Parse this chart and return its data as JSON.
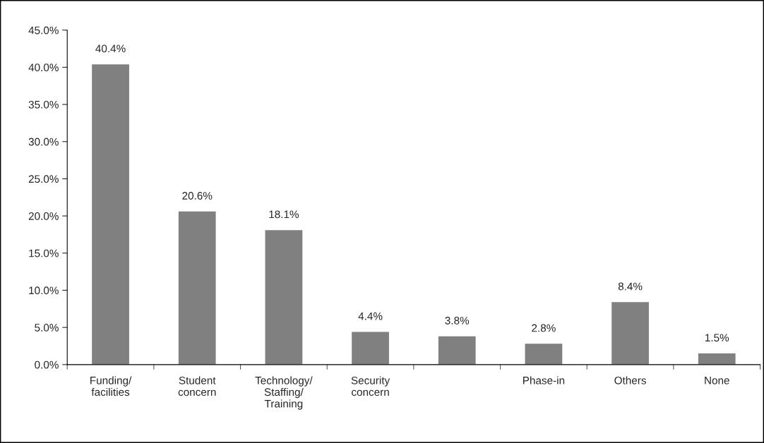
{
  "chart_data": {
    "type": "bar",
    "categories": [
      "Funding/\nfacilities",
      "Student\nconcern",
      "Technology/\nStaffing/\nTraining",
      "Security\nconcern",
      null,
      "Phase-in",
      "Others",
      "None"
    ],
    "values": [
      40.4,
      20.6,
      18.1,
      4.4,
      3.8,
      2.8,
      8.4,
      1.5
    ],
    "value_labels": [
      "40.4%",
      "20.6%",
      "18.1%",
      "4.4%",
      "3.8%",
      "2.8%",
      "8.4%",
      "1.5%"
    ],
    "color": "#808080",
    "ylim": [
      0,
      45
    ],
    "yticks": [
      {
        "value": 0,
        "label": "0.0%"
      },
      {
        "value": 5,
        "label": "5.0%"
      },
      {
        "value": 10,
        "label": "10.0%"
      },
      {
        "value": 15,
        "label": "15.0%"
      },
      {
        "value": 20,
        "label": "20.0%"
      },
      {
        "value": 25,
        "label": "25.0%"
      },
      {
        "value": 30,
        "label": "30.0%"
      },
      {
        "value": 35,
        "label": "35.0%"
      },
      {
        "value": 40,
        "label": "40.0%"
      },
      {
        "value": 45,
        "label": "45.0%"
      }
    ],
    "grid": false
  }
}
